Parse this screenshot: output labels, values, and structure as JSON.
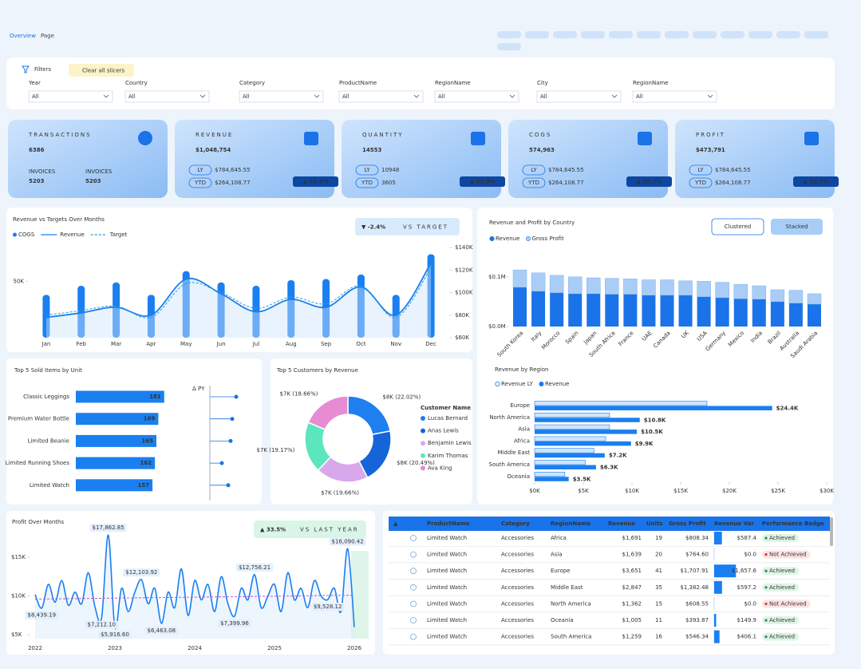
{
  "header": {
    "title_main": "Overview",
    "title_sub": "Page"
  },
  "filters": {
    "title": "Filters",
    "clear": "Clear all slicers",
    "slicers": [
      {
        "label": "Year",
        "value": "All"
      },
      {
        "label": "Country",
        "value": "All"
      },
      {
        "label": "Category",
        "value": "All"
      },
      {
        "label": "ProductName",
        "value": "All"
      },
      {
        "label": "RegionName",
        "value": "All"
      },
      {
        "label": "City",
        "value": "All"
      },
      {
        "label": "RegionName",
        "value": "All"
      }
    ]
  },
  "kpis": [
    {
      "label": "TRANSACTIONS",
      "value": "6386",
      "sub": [
        {
          "label": "INVOICES",
          "value": "5203"
        },
        {
          "label": "INVOICES",
          "value": "5203"
        }
      ]
    },
    {
      "label": "REVENUE",
      "value": "$1,048,754",
      "rows": [
        {
          "label": "LY",
          "value": "$784,645.55"
        },
        {
          "label": "YTD",
          "value": "$264,108.77"
        }
      ],
      "badge": "▲ 33.7%"
    },
    {
      "label": "QUANTITY",
      "value": "14553",
      "rows": [
        {
          "label": "LY",
          "value": "10948"
        },
        {
          "label": "YTD",
          "value": "3605"
        }
      ],
      "badge": "▲ 32.9%"
    },
    {
      "label": "COGS",
      "value": "574,963",
      "rows": [
        {
          "label": "LY",
          "value": "$784,645.55"
        },
        {
          "label": "YTD",
          "value": "$264,108.77"
        }
      ],
      "badge": "▲ 33.7%"
    },
    {
      "label": "PROFIT",
      "value": "$473,791",
      "rows": [
        {
          "label": "LY",
          "value": "$784,645.55"
        },
        {
          "label": "YTD",
          "value": "$264,108.77"
        }
      ],
      "badge": "▲ 33.7%"
    }
  ],
  "chart_data": [
    {
      "type": "combo",
      "title": "Revenue vs Targets Over Months",
      "categories": [
        "Jan",
        "Feb",
        "Mar",
        "Apr",
        "May",
        "Jun",
        "Jul",
        "Aug",
        "Sep",
        "Oct",
        "Nov",
        "Dec"
      ],
      "series": [
        {
          "name": "COGS",
          "color": "#1a7ff0",
          "values": [
            38000,
            46000,
            49000,
            38000,
            59000,
            49000,
            46000,
            51000,
            52000,
            56000,
            38000,
            74000
          ]
        },
        {
          "name": "Revenue",
          "color": "#1a7ff0",
          "axis": "y2",
          "values": [
            78000,
            82000,
            87000,
            80000,
            112000,
            99000,
            83000,
            94000,
            87000,
            105000,
            80000,
            126000
          ]
        },
        {
          "name": "Target",
          "color": "#2a9fd8",
          "axis": "y2",
          "dashed": true,
          "values": [
            80000,
            84000,
            88000,
            78000,
            108000,
            100000,
            86000,
            96000,
            90000,
            106000,
            78000,
            122000
          ]
        }
      ],
      "ylim": [
        0,
        80000
      ],
      "yticks": [
        {
          "value": 50000,
          "label": "50K"
        }
      ],
      "y2lim": [
        60000,
        140000
      ],
      "y2ticks": [
        {
          "value": 60000,
          "label": "$60K"
        },
        {
          "value": 80000,
          "label": "$80K"
        },
        {
          "value": 100000,
          "label": "$100K"
        },
        {
          "value": 120000,
          "label": "$120K"
        },
        {
          "value": 140000,
          "label": "$140K"
        }
      ],
      "badge": {
        "value": "▼ -2.4%",
        "label": "VS TARGET"
      }
    },
    {
      "type": "stacked_bar",
      "title": "Revenue and Profit by Country",
      "buttons": [
        "Clustered",
        "Stacked"
      ],
      "active_button": 1,
      "categories": [
        "South Korea",
        "Italy",
        "Morocco",
        "Spain",
        "Japan",
        "South Africa",
        "France",
        "UAE",
        "Canada",
        "UK",
        "USA",
        "Germany",
        "Mexico",
        "India",
        "Brazil",
        "Australia",
        "Saudi Arabia"
      ],
      "series": [
        {
          "name": "Revenue",
          "color": "#1a73e8",
          "values": [
            0.079,
            0.071,
            0.068,
            0.066,
            0.066,
            0.065,
            0.065,
            0.063,
            0.063,
            0.063,
            0.06,
            0.058,
            0.056,
            0.055,
            0.05,
            0.047,
            0.045
          ]
        },
        {
          "name": "Gross Profit",
          "color": "#a9cdf6",
          "values": [
            0.035,
            0.037,
            0.035,
            0.034,
            0.032,
            0.032,
            0.031,
            0.031,
            0.031,
            0.029,
            0.031,
            0.031,
            0.029,
            0.027,
            0.024,
            0.026,
            0.021
          ]
        }
      ],
      "ylim": [
        0,
        0.135
      ],
      "yticks": [
        {
          "value": 0,
          "label": "$0.0M"
        },
        {
          "value": 0.1,
          "label": "$0.1M"
        }
      ]
    },
    {
      "type": "hbar_grouped",
      "title": "Revenue by Region",
      "categories": [
        "Europe",
        "North America",
        "Asia",
        "Africa",
        "Middle East",
        "South America",
        "Oceania"
      ],
      "series": [
        {
          "name": "Revenue LY",
          "color": "#cfe5fd",
          "values": [
            17.7,
            7.7,
            7.7,
            7.3,
            6.1,
            5.2,
            3.1
          ]
        },
        {
          "name": "Revenue",
          "color": "#1a7ff0",
          "values": [
            24.4,
            10.8,
            10.5,
            9.9,
            7.2,
            6.3,
            3.5
          ],
          "value_labels": [
            "$24.4K",
            "$10.8K",
            "$10.5K",
            "$9.9K",
            "$7.2K",
            "$6.3K",
            "$3.5K"
          ]
        }
      ],
      "xlim": [
        0,
        30
      ],
      "xticks": [
        {
          "value": 0,
          "label": "$0K"
        },
        {
          "value": 5,
          "label": "$5K"
        },
        {
          "value": 10,
          "label": "$10K"
        },
        {
          "value": 15,
          "label": "$15K"
        },
        {
          "value": 20,
          "label": "$20K"
        },
        {
          "value": 25,
          "label": "$25K"
        },
        {
          "value": 30,
          "label": "$30K"
        }
      ]
    },
    {
      "type": "hbar",
      "title": "Top 5 Sold Items by Unit",
      "categories": [
        "Classic Leggings",
        "Premium Water Bottle",
        "Limited Beanie",
        "Limited Running Shoes",
        "Limited Watch"
      ],
      "values": [
        181,
        169,
        165,
        162,
        157
      ],
      "color": "#1a7ff0",
      "xlim": [
        0,
        250
      ],
      "delta_label": "Δ PY",
      "delta_values": [
        33,
        28,
        26,
        15,
        23
      ],
      "delta_xlim": [
        0,
        50
      ]
    },
    {
      "type": "donut",
      "title": "Top 5 Customers by Revenue",
      "legend_title": "Customer Name",
      "categories": [
        "Lucas Bernard",
        "Anas Lewis",
        "Benjamin Lewis",
        "Karim Thomas",
        "Ava King"
      ],
      "values": [
        22.02,
        20.49,
        19.66,
        19.17,
        18.66
      ],
      "value_labels": [
        "$8K (22.02%)",
        "$8K (20.49%)",
        "$7K (19.66%)",
        "$7K (19.17%)",
        "$7K (18.66%)"
      ],
      "colors": [
        "#1f7ef0",
        "#1565d8",
        "#d9a8ec",
        "#5ce6bd",
        "#e78bd2"
      ]
    },
    {
      "type": "line",
      "title": "Profit Over Months",
      "color": "#1a7ff0",
      "categories": [
        "2022",
        null,
        null,
        null,
        null,
        null,
        null,
        null,
        null,
        null,
        null,
        null,
        "2023",
        null,
        null,
        null,
        null,
        null,
        null,
        null,
        null,
        null,
        null,
        null,
        "2024",
        null,
        null,
        null,
        null,
        null,
        null,
        null,
        null,
        null,
        null,
        null,
        "2025",
        null,
        null,
        null,
        null,
        null,
        null,
        null,
        null,
        null,
        null,
        null,
        "2026"
      ],
      "values": [
        10.2,
        8.43919,
        11.5,
        9.2,
        12.0,
        8.8,
        10.5,
        9.0,
        13.0,
        8.6,
        7.2121,
        17.86285,
        5.9166,
        11.0,
        8.0,
        10.5,
        12.10392,
        9.0,
        11.0,
        6.46308,
        10.5,
        8.5,
        13.5,
        7.5,
        12.0,
        9.5,
        11.5,
        8.0,
        12.5,
        9.0,
        7.39996,
        11.0,
        9.5,
        12.75621,
        8.5,
        10.0,
        11.5,
        8.0,
        13.0,
        9.5,
        11.0,
        8.5,
        12.0,
        10.0,
        9.52812,
        11.0,
        8.0,
        16.09042,
        6.0
      ],
      "value_labels": [
        null,
        "$8,439.19",
        null,
        null,
        null,
        null,
        null,
        null,
        null,
        null,
        "$7,212.10",
        "$17,862.85",
        "$5,916.60",
        null,
        null,
        null,
        "$12,103.92",
        null,
        null,
        "$6,463.08",
        null,
        null,
        null,
        null,
        null,
        null,
        null,
        null,
        null,
        null,
        "$7,399.96",
        null,
        null,
        "$12,756.21",
        null,
        null,
        null,
        null,
        null,
        null,
        null,
        null,
        null,
        null,
        "$9,528.12",
        null,
        null,
        "$16,090.42",
        null
      ],
      "trend": [
        9.6,
        10.1
      ],
      "trend_color": "#c04fd6",
      "ylim": [
        4.5,
        18.5
      ],
      "yticks": [
        {
          "value": 5,
          "label": "$5K"
        },
        {
          "value": 10,
          "label": "$10K"
        },
        {
          "value": 15,
          "label": "$15K"
        }
      ],
      "badge": {
        "value": "▲ 33.5%",
        "label": "VS LAST YEAR"
      }
    }
  ],
  "table": {
    "sort_icon": "▲",
    "columns": [
      "ProductName",
      "Category",
      "RegionName",
      "Revenue",
      "Units",
      "Gross Profit",
      "Revenue Var",
      "Performance Badge"
    ],
    "rows": [
      [
        "Limited Watch",
        "Accessories",
        "Africa",
        "$1,691",
        "19",
        "$808.34",
        "$587.4",
        "Achieved"
      ],
      [
        "Limited Watch",
        "Accessories",
        "Asia",
        "$1,639",
        "20",
        "$764.60",
        "$0.0",
        "Not Achieved"
      ],
      [
        "Limited Watch",
        "Accessories",
        "Europe",
        "$3,651",
        "41",
        "$1,707.91",
        "$1,657.6",
        "Achieved"
      ],
      [
        "Limited Watch",
        "Accessories",
        "Middle East",
        "$2,847",
        "35",
        "$1,382.48",
        "$597.2",
        "Achieved"
      ],
      [
        "Limited Watch",
        "Accessories",
        "North America",
        "$1,362",
        "15",
        "$608.55",
        "$0.0",
        "Not Achieved"
      ],
      [
        "Limited Watch",
        "Accessories",
        "Oceania",
        "$1,005",
        "11",
        "$393.87",
        "$149.9",
        "Achieved"
      ],
      [
        "Limited Watch",
        "Accessories",
        "South America",
        "$1,259",
        "16",
        "$546.34",
        "$406.1",
        "Achieved"
      ]
    ],
    "badge_styles": {
      "Achieved": {
        "bg": "#def5e5",
        "fg": "#2e8b57"
      },
      "Not Achieved": {
        "bg": "#fde3e3",
        "fg": "#d33a3a"
      }
    }
  }
}
